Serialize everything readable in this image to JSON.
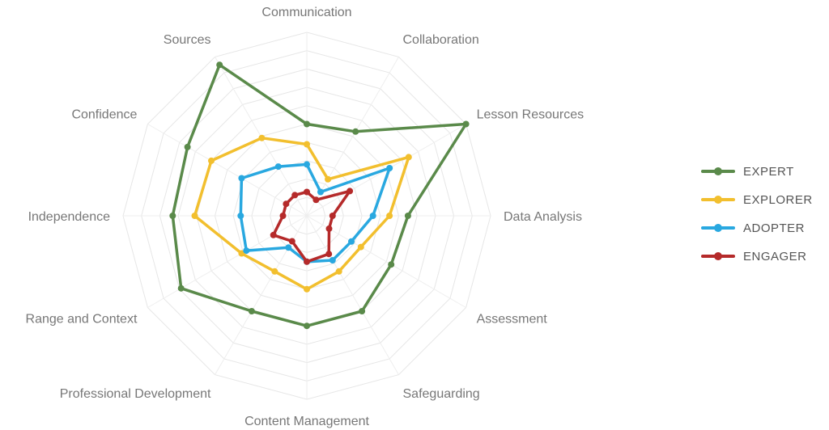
{
  "chart_data": {
    "type": "radar",
    "title": "",
    "axes": [
      "Communication",
      "Collaboration",
      "Lesson Resources",
      "Data Analysis",
      "Assessment",
      "Safeguarding",
      "Content Management",
      "Professional Development",
      "Range and Context",
      "Independence",
      "Confidence",
      "Sources"
    ],
    "scale": {
      "min": 0,
      "max": 10,
      "rings": 10
    },
    "grid": true,
    "legend_position": "right",
    "series": [
      {
        "name": "EXPERT",
        "color": "#5a8a4a",
        "values": [
          5.0,
          5.3,
          10.0,
          5.5,
          5.3,
          6.0,
          6.0,
          6.0,
          7.9,
          7.3,
          7.5,
          9.5
        ]
      },
      {
        "name": "EXPLORER",
        "color": "#f2bf2e",
        "values": [
          3.9,
          2.3,
          6.4,
          4.5,
          3.4,
          3.5,
          4.0,
          3.5,
          4.1,
          6.1,
          6.0,
          4.9
        ]
      },
      {
        "name": "ADOPTER",
        "color": "#29a8e0",
        "values": [
          2.8,
          1.5,
          5.2,
          3.6,
          2.8,
          2.8,
          2.5,
          2.0,
          3.8,
          3.6,
          4.1,
          3.1
        ]
      },
      {
        "name": "ENGAGER",
        "color": "#b52a2a",
        "values": [
          1.3,
          1.0,
          2.7,
          1.4,
          1.4,
          2.4,
          2.5,
          1.6,
          2.1,
          1.3,
          1.3,
          1.3
        ]
      }
    ]
  }
}
